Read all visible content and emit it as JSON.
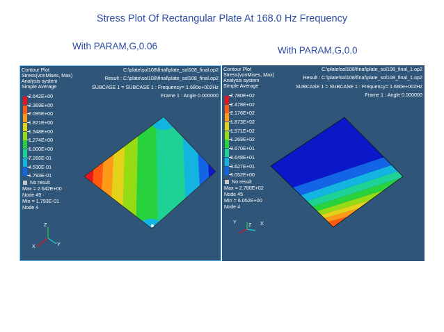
{
  "slide": {
    "title": "Stress Plot Of Rectangular Plate At 168.0 Hz Frequency",
    "left_caption": "With PARAM,G,0.06",
    "right_caption": "With PARAM,G,0.0"
  },
  "panels": {
    "left": {
      "header": {
        "line1": "Contour Plot",
        "line2": "Stress(vonMises, Max)",
        "line3": "Analysis system",
        "line4": "Simple Average",
        "file": "C:\\plate\\sol108\\final\\plate_sol108_final.op2",
        "result": "Result : C:\\plate\\sol108\\final\\plate_sol108_final.op2",
        "subcase": "SUBCASE 1 = SUBCASE 1  : Frequency=  1.680e+002Hz",
        "frame": "Frame 1 : Angle 0.000000"
      },
      "legend": [
        "2.642E+00",
        "2.369E+00",
        "2.095E+00",
        "1.821E+00",
        "1.548E+00",
        "1.274E+00",
        "1.000E+00",
        "7.266E-01",
        "4.530E-01",
        "1.793E-01"
      ],
      "no_result": "No result",
      "stats": {
        "max": "Max = 2.642E+00",
        "max_node": "Node 49",
        "min": "Min = 1.793E-01",
        "min_node": "Node 4"
      },
      "axes": {
        "z": "Z",
        "x": "X",
        "y": "Y"
      }
    },
    "right": {
      "header": {
        "line1": "Contour Plot",
        "line2": "Stress(vonMises, Max)",
        "line3": "Analysis system",
        "line4": "Simple Average",
        "file": "C:\\plate\\sol108\\final\\plate_sol108_final_1.op2",
        "result": "Result : C:\\plate\\sol108\\final\\plate_sol108_final_1.op2",
        "subcase": "SUBCASE 1 = SUBCASE 1  : Frequency=  1.680e+002Hz",
        "frame": "Frame 1 : Angle 0.000000"
      },
      "legend": [
        "2.780E+02",
        "2.478E+02",
        "2.176E+02",
        "1.873E+02",
        "1.571E+02",
        "1.269E+02",
        "9.670E+01",
        "6.648E+01",
        "3.627E+01",
        "6.052E+00"
      ],
      "no_result": "No result",
      "stats": {
        "max": "Max = 2.780E+02",
        "max_node": "Node 45",
        "min": "Min = 6.052E+00",
        "min_node": "Node 4"
      },
      "axes": {
        "y": "Y",
        "z": "Z",
        "x": "X"
      }
    }
  },
  "colors": {
    "panel_bg": "#2f5679",
    "legend": [
      "#e8141e",
      "#ff5a10",
      "#ff9a18",
      "#e4d21a",
      "#96dc14",
      "#28d23c",
      "#1ed296",
      "#14b4e0",
      "#1464e6",
      "#0a18c8"
    ]
  }
}
